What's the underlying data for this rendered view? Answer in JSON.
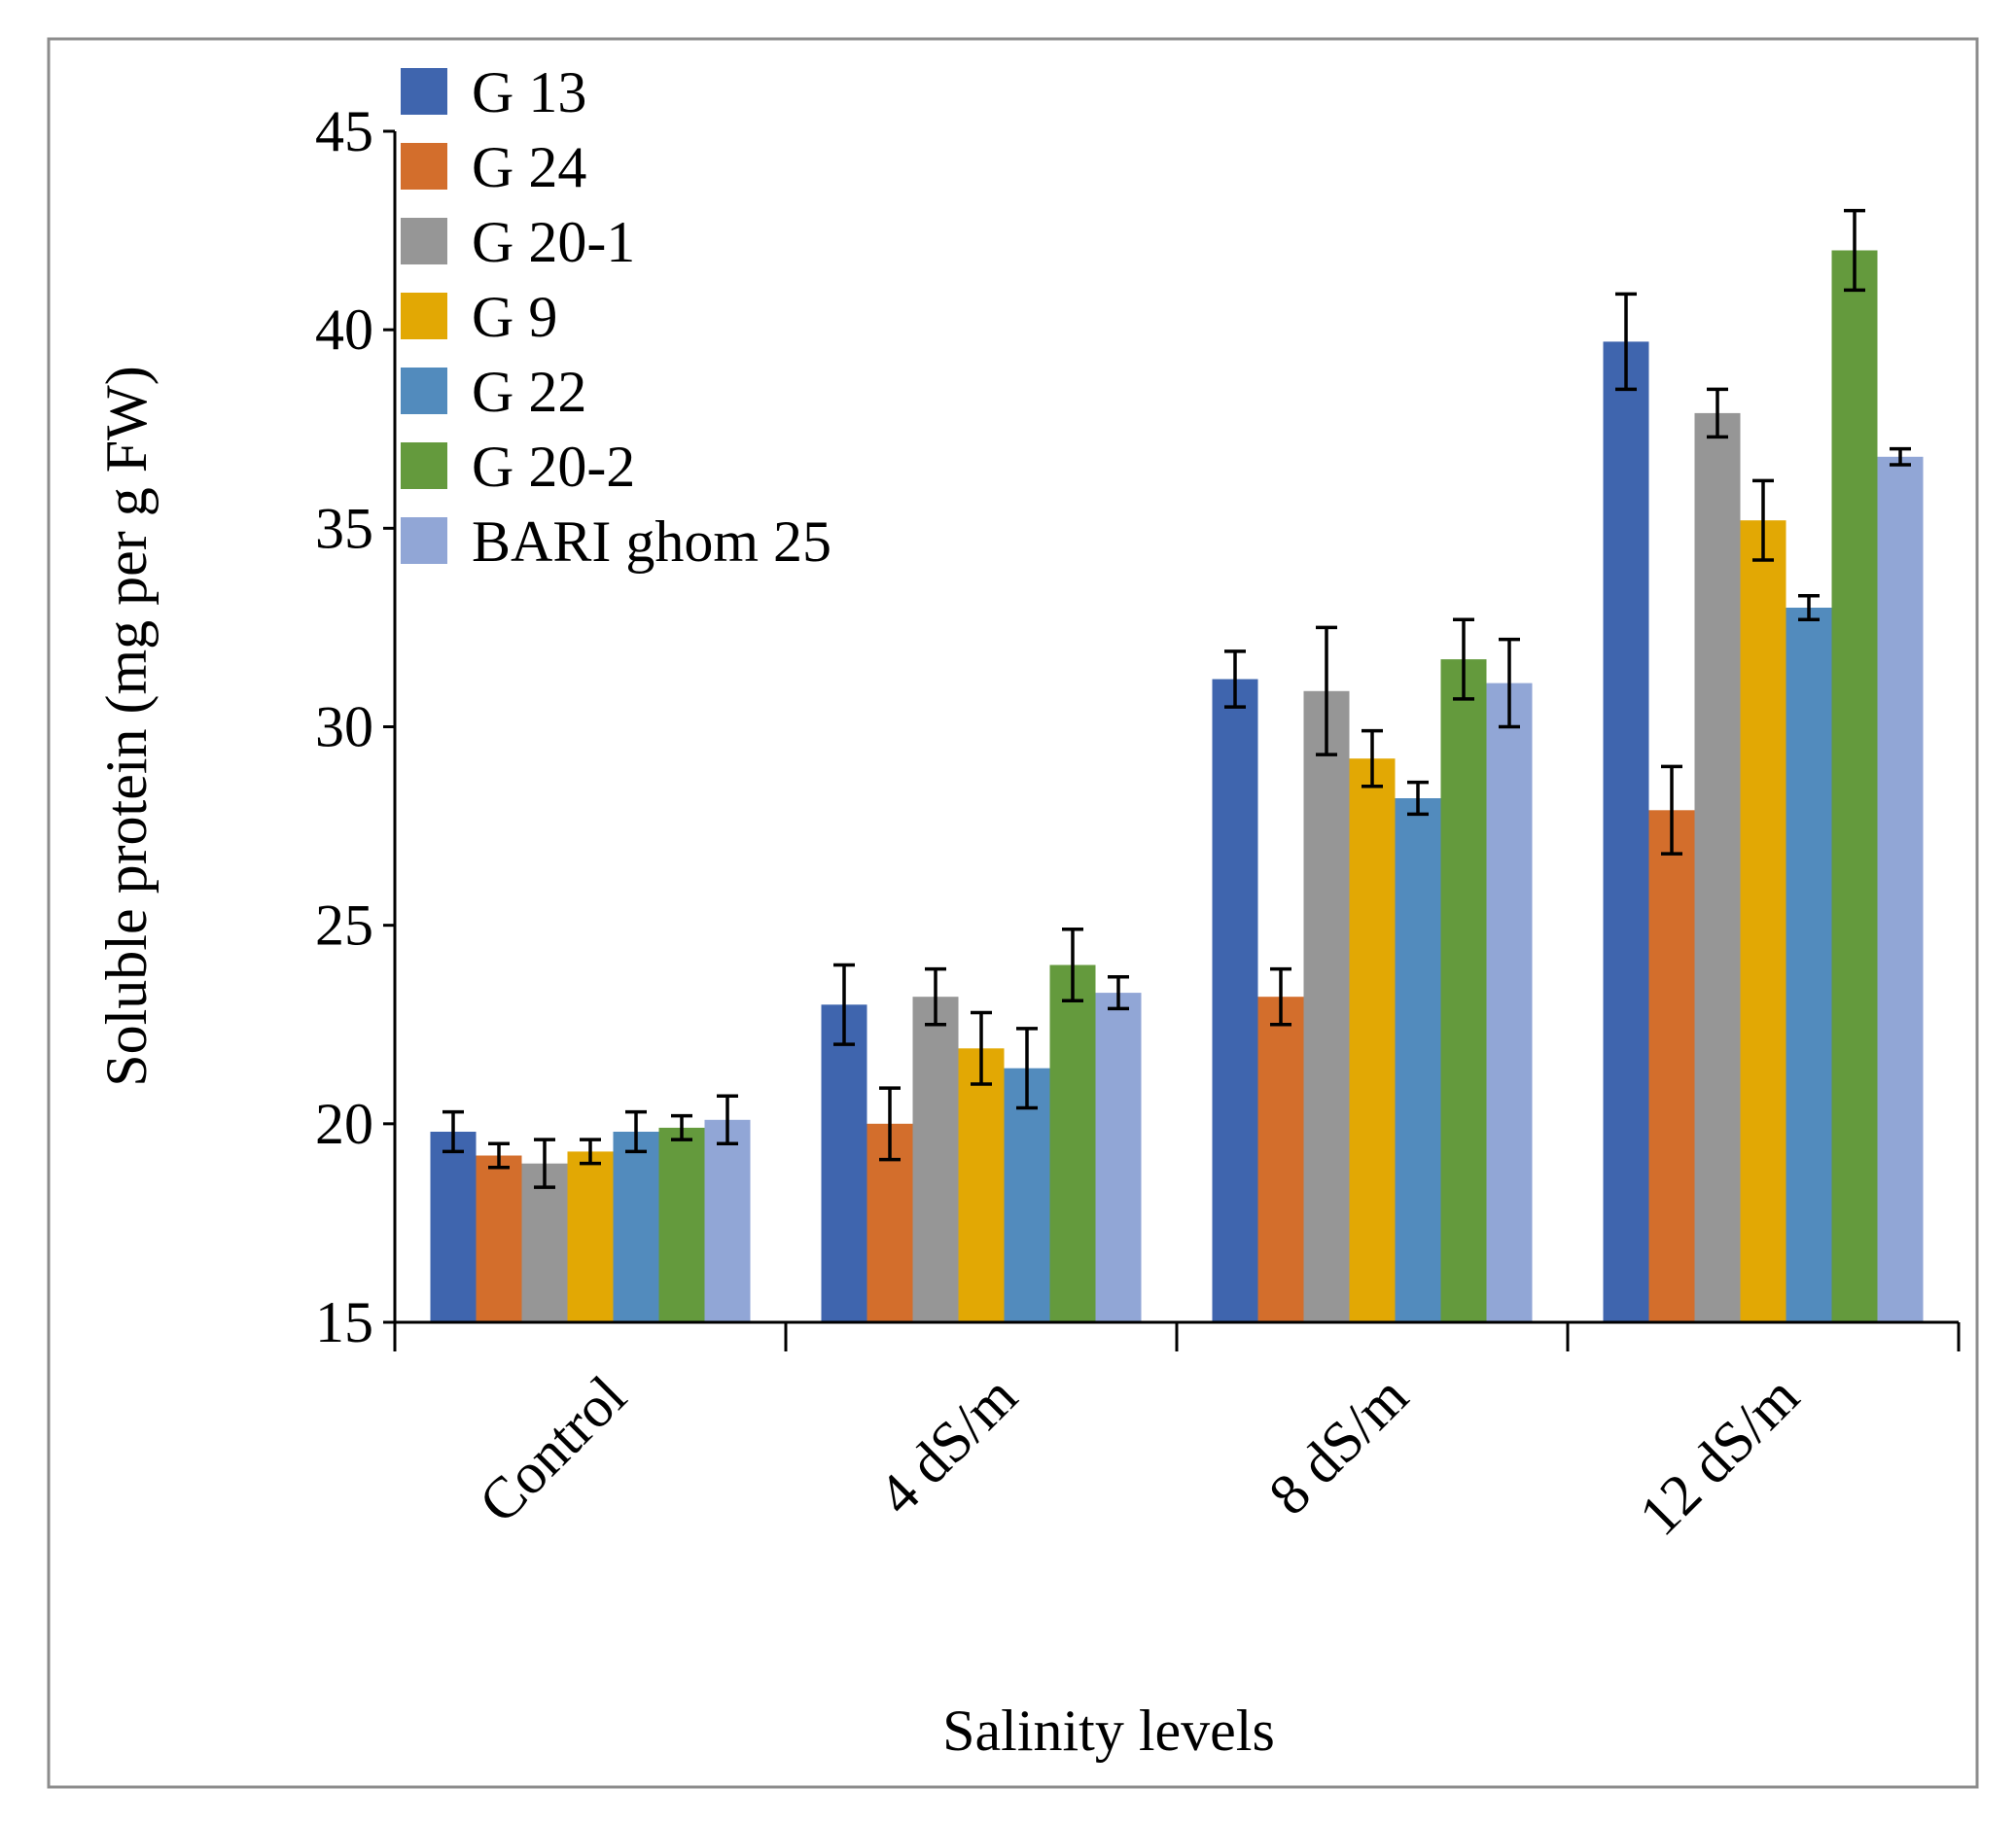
{
  "chart_data": {
    "type": "bar",
    "title": "",
    "xlabel": "Salinity levels",
    "ylabel": "Soluble protein (mg per g FW)",
    "ylim": [
      15,
      45
    ],
    "yticks": [
      15,
      20,
      25,
      30,
      35,
      40,
      45
    ],
    "categories": [
      "Control",
      "4 dS/m",
      "8 dS/m",
      "12 dS/m"
    ],
    "legend_position": "top-left",
    "series": [
      {
        "name": "G 13",
        "color": "#3f65ae",
        "values": [
          19.8,
          23.0,
          31.2,
          39.7
        ],
        "errors": [
          0.5,
          1.0,
          0.7,
          1.2
        ]
      },
      {
        "name": "G 24",
        "color": "#d36e2c",
        "values": [
          19.2,
          20.0,
          23.2,
          27.9
        ],
        "errors": [
          0.3,
          0.9,
          0.7,
          1.1
        ]
      },
      {
        "name": "G 20-1",
        "color": "#969696",
        "values": [
          19.0,
          23.2,
          30.9,
          37.9
        ],
        "errors": [
          0.6,
          0.7,
          1.6,
          0.6
        ]
      },
      {
        "name": "G 9",
        "color": "#e2a804",
        "values": [
          19.3,
          21.9,
          29.2,
          35.2
        ],
        "errors": [
          0.3,
          0.9,
          0.7,
          1.0
        ]
      },
      {
        "name": "G 22",
        "color": "#528bbd",
        "values": [
          19.8,
          21.4,
          28.2,
          33.0
        ],
        "errors": [
          0.5,
          1.0,
          0.4,
          0.3
        ]
      },
      {
        "name": "G 20-2",
        "color": "#649a3d",
        "values": [
          19.9,
          24.0,
          31.7,
          42.0
        ],
        "errors": [
          0.3,
          0.9,
          1.0,
          1.0
        ]
      },
      {
        "name": "BARI ghom 25",
        "color": "#91a6d6",
        "values": [
          20.1,
          23.3,
          31.1,
          36.8
        ],
        "errors": [
          0.6,
          0.4,
          1.1,
          0.2
        ]
      }
    ]
  }
}
